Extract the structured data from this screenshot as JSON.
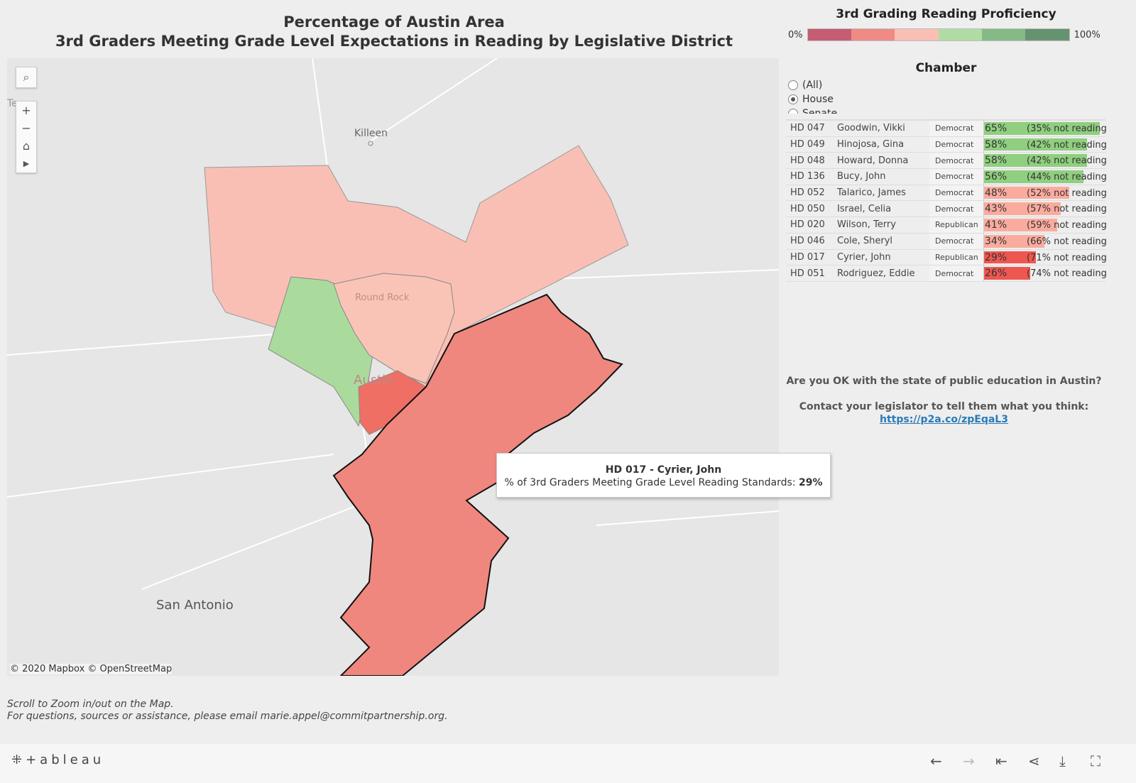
{
  "title": {
    "line1": "Percentage of Austin Area",
    "line2": "3rd Graders Meeting Grade Level Expectations in Reading by Legislative District"
  },
  "map": {
    "attribution": "© 2020 Mapbox © OpenStreetMap",
    "labels": {
      "killeen": "Killeen",
      "round_rock": "Round Rock",
      "austin": "Austin",
      "san_antonio": "San Antonio",
      "texas": "Tex"
    },
    "controls": {
      "search": "⌕",
      "zoom_in": "+",
      "zoom_out": "−",
      "home": "⌂",
      "play": "▶"
    }
  },
  "tooltip": {
    "title": "HD 017 - Cyrier, John",
    "label": "% of 3rd Graders Meeting Grade Level Reading Standards:",
    "value": "29%"
  },
  "legend": {
    "title": "3rd Grading Reading Proficiency",
    "min": "0%",
    "max": "100%",
    "colors": [
      "#c65c72",
      "#f08a84",
      "#f9bfb5",
      "#b0dca3",
      "#85b986",
      "#66936f"
    ]
  },
  "chamber": {
    "title": "Chamber",
    "options": [
      {
        "label": "(All)",
        "selected": false
      },
      {
        "label": "House",
        "selected": true
      },
      {
        "label": "Senate",
        "selected": false
      }
    ]
  },
  "table": {
    "rows": [
      {
        "district": "HD 047",
        "name": "Goodwin, Vikki",
        "party": "Democrat",
        "pct": 65,
        "pct_label": "65%",
        "not": "(35% not reading"
      },
      {
        "district": "HD 049",
        "name": "Hinojosa, Gina",
        "party": "Democrat",
        "pct": 58,
        "pct_label": "58%",
        "not": "(42% not reading"
      },
      {
        "district": "HD 048",
        "name": "Howard, Donna",
        "party": "Democrat",
        "pct": 58,
        "pct_label": "58%",
        "not": "(42% not reading"
      },
      {
        "district": "HD 136",
        "name": "Bucy, John",
        "party": "Democrat",
        "pct": 56,
        "pct_label": "56%",
        "not": "(44% not reading"
      },
      {
        "district": "HD 052",
        "name": "Talarico, James",
        "party": "Democrat",
        "pct": 48,
        "pct_label": "48%",
        "not": "(52% not reading"
      },
      {
        "district": "HD 050",
        "name": "Israel, Celia",
        "party": "Democrat",
        "pct": 43,
        "pct_label": "43%",
        "not": "(57% not reading"
      },
      {
        "district": "HD 020",
        "name": "Wilson, Terry",
        "party": "Republican",
        "pct": 41,
        "pct_label": "41%",
        "not": "(59% not reading"
      },
      {
        "district": "HD 046",
        "name": "Cole, Sheryl",
        "party": "Democrat",
        "pct": 34,
        "pct_label": "34%",
        "not": "(66% not reading"
      },
      {
        "district": "HD 017",
        "name": "Cyrier, John",
        "party": "Republican",
        "pct": 29,
        "pct_label": "29%",
        "not": "(71% not reading"
      },
      {
        "district": "HD 051",
        "name": "Rodriguez, Eddie",
        "party": "Democrat",
        "pct": 26,
        "pct_label": "26%",
        "not": "(74% not reading"
      }
    ]
  },
  "cta": {
    "question": "Are you OK with the state of public education in Austin?",
    "contact": "Contact your legislator to tell them what you think:",
    "link": "https://p2a.co/zpEqaL3"
  },
  "footer": {
    "line1": "Scroll to Zoom in/out on the Map.",
    "line2": "For questions, sources or assistance, please email marie.appel@commitpartnership.org."
  },
  "toolbar": {
    "logo": "+ableau",
    "undo": "←",
    "redo": "→",
    "revert": "⇤",
    "share": "⋖",
    "download": "⤓",
    "fullscreen": "⛶"
  }
}
